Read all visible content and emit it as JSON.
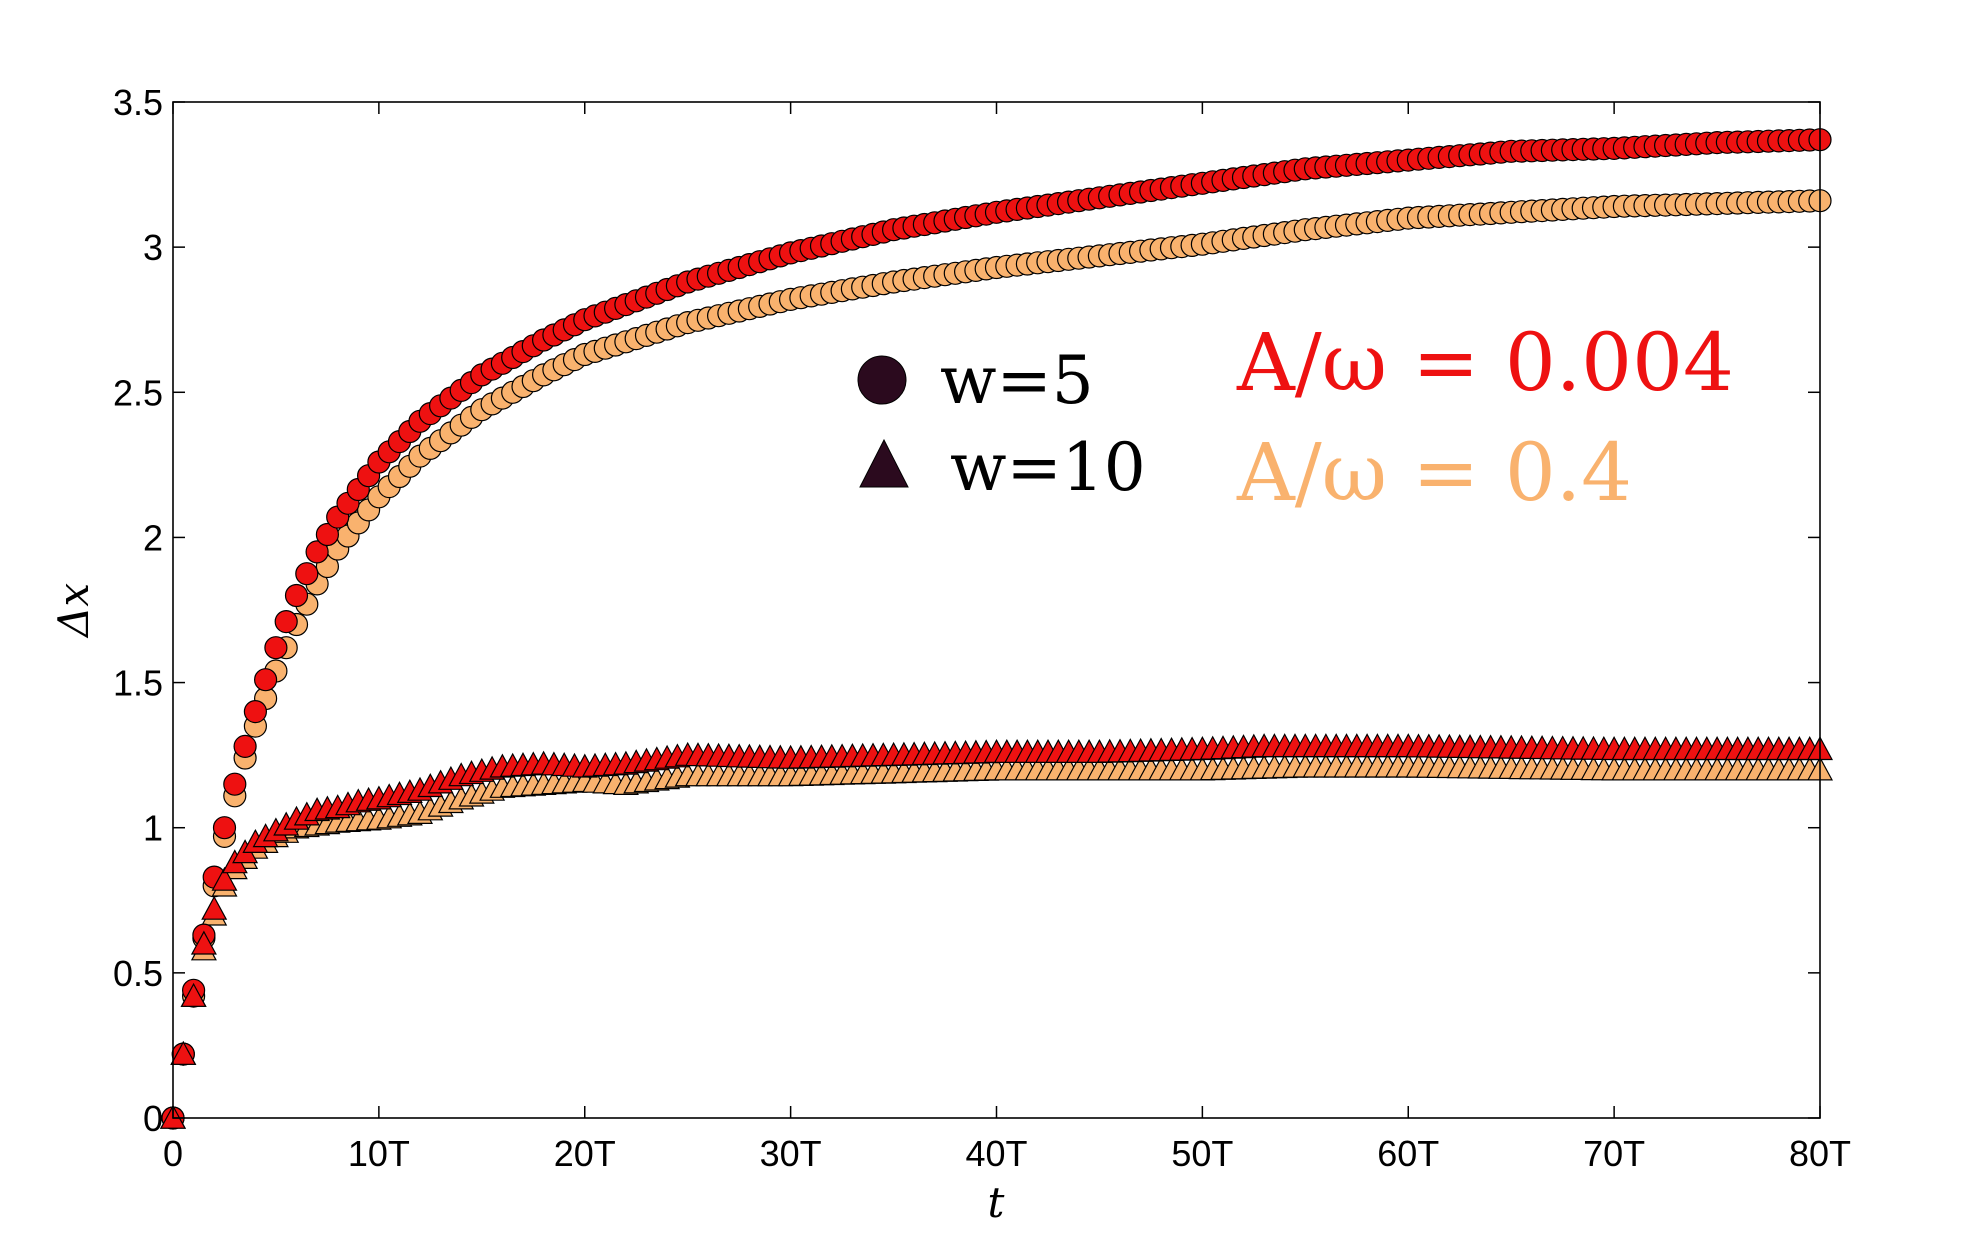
{
  "chart_data": {
    "type": "scatter",
    "title": "",
    "xlabel": "t",
    "ylabel": "Δx",
    "xlim": [
      0,
      80
    ],
    "ylim": [
      0,
      3.5
    ],
    "grid": false,
    "x_ticks": [
      {
        "value": 0,
        "label": "0"
      },
      {
        "value": 10,
        "label": "10T"
      },
      {
        "value": 20,
        "label": "20T"
      },
      {
        "value": 30,
        "label": "30T"
      },
      {
        "value": 40,
        "label": "40T"
      },
      {
        "value": 50,
        "label": "50T"
      },
      {
        "value": 60,
        "label": "60T"
      },
      {
        "value": 70,
        "label": "70T"
      },
      {
        "value": 80,
        "label": "80T"
      }
    ],
    "y_ticks": [
      {
        "value": 0,
        "label": "0"
      },
      {
        "value": 0.5,
        "label": "0.5"
      },
      {
        "value": 1,
        "label": "1"
      },
      {
        "value": 1.5,
        "label": "1.5"
      },
      {
        "value": 2,
        "label": "2"
      },
      {
        "value": 2.5,
        "label": "2.5"
      },
      {
        "value": 3,
        "label": "3"
      },
      {
        "value": 3.5,
        "label": "3.5"
      }
    ],
    "legend": {
      "placement": "upper-center",
      "entries": [
        {
          "marker": "circle",
          "label": "w=5"
        },
        {
          "marker": "triangle",
          "label": "w=10"
        }
      ],
      "color": "#2b0a1e"
    },
    "annotations": [
      {
        "text": "A/ω = 0.004",
        "color": "#ee1111"
      },
      {
        "text": "A/ω = 0.4",
        "color": "#f9b26e"
      }
    ],
    "sampling": {
      "t_start": 0,
      "t_end": 80,
      "step": 0.5
    },
    "series": [
      {
        "name": "w=5, A/ω = 0.004",
        "marker": "circle",
        "color": "#ee1111",
        "anchors": [
          [
            0,
            0
          ],
          [
            0.5,
            0.22
          ],
          [
            1,
            0.44
          ],
          [
            1.5,
            0.63
          ],
          [
            2,
            0.83
          ],
          [
            2.5,
            1.0
          ],
          [
            3,
            1.15
          ],
          [
            3.5,
            1.28
          ],
          [
            4,
            1.4
          ],
          [
            5,
            1.62
          ],
          [
            6,
            1.8
          ],
          [
            7,
            1.95
          ],
          [
            8,
            2.07
          ],
          [
            10,
            2.26
          ],
          [
            12,
            2.4
          ],
          [
            15,
            2.56
          ],
          [
            18,
            2.68
          ],
          [
            20,
            2.75
          ],
          [
            25,
            2.88
          ],
          [
            30,
            2.98
          ],
          [
            35,
            3.06
          ],
          [
            40,
            3.12
          ],
          [
            45,
            3.17
          ],
          [
            50,
            3.22
          ],
          [
            55,
            3.27
          ],
          [
            60,
            3.3
          ],
          [
            65,
            3.33
          ],
          [
            70,
            3.34
          ],
          [
            75,
            3.36
          ],
          [
            80,
            3.37
          ]
        ]
      },
      {
        "name": "w=5, A/ω = 0.4",
        "marker": "circle",
        "color": "#f9b26e",
        "anchors": [
          [
            0,
            0
          ],
          [
            0.5,
            0.22
          ],
          [
            1,
            0.42
          ],
          [
            1.5,
            0.62
          ],
          [
            2,
            0.8
          ],
          [
            2.5,
            0.97
          ],
          [
            3,
            1.11
          ],
          [
            3.5,
            1.24
          ],
          [
            4,
            1.35
          ],
          [
            5,
            1.54
          ],
          [
            6,
            1.7
          ],
          [
            7,
            1.84
          ],
          [
            8,
            1.96
          ],
          [
            10,
            2.14
          ],
          [
            12,
            2.28
          ],
          [
            15,
            2.44
          ],
          [
            18,
            2.56
          ],
          [
            20,
            2.63
          ],
          [
            25,
            2.74
          ],
          [
            30,
            2.82
          ],
          [
            35,
            2.88
          ],
          [
            40,
            2.93
          ],
          [
            45,
            2.97
          ],
          [
            50,
            3.01
          ],
          [
            55,
            3.06
          ],
          [
            60,
            3.1
          ],
          [
            65,
            3.12
          ],
          [
            70,
            3.14
          ],
          [
            75,
            3.15
          ],
          [
            80,
            3.16
          ]
        ]
      },
      {
        "name": "w=10, A/ω = 0.004",
        "marker": "triangle",
        "color": "#ee1111",
        "anchors": [
          [
            0,
            0
          ],
          [
            0.5,
            0.22
          ],
          [
            1,
            0.42
          ],
          [
            1.5,
            0.6
          ],
          [
            2,
            0.72
          ],
          [
            2.5,
            0.82
          ],
          [
            3,
            0.88
          ],
          [
            4,
            0.95
          ],
          [
            5,
            0.99
          ],
          [
            6,
            1.03
          ],
          [
            7,
            1.06
          ],
          [
            8,
            1.07
          ],
          [
            9,
            1.09
          ],
          [
            10,
            1.1
          ],
          [
            12,
            1.13
          ],
          [
            14,
            1.18
          ],
          [
            16,
            1.21
          ],
          [
            18,
            1.22
          ],
          [
            20,
            1.21
          ],
          [
            22,
            1.22
          ],
          [
            25,
            1.25
          ],
          [
            30,
            1.24
          ],
          [
            35,
            1.25
          ],
          [
            40,
            1.26
          ],
          [
            45,
            1.26
          ],
          [
            50,
            1.27
          ],
          [
            53,
            1.28
          ],
          [
            55,
            1.28
          ],
          [
            60,
            1.28
          ],
          [
            70,
            1.27
          ],
          [
            80,
            1.27
          ]
        ]
      },
      {
        "name": "w=10, A/ω = 0.4",
        "marker": "triangle",
        "color": "#f9b26e",
        "anchors": [
          [
            0,
            0
          ],
          [
            0.5,
            0.22
          ],
          [
            1,
            0.42
          ],
          [
            1.5,
            0.58
          ],
          [
            2,
            0.7
          ],
          [
            2.5,
            0.8
          ],
          [
            3,
            0.86
          ],
          [
            4,
            0.93
          ],
          [
            5,
            0.97
          ],
          [
            6,
            1.0
          ],
          [
            7,
            1.01
          ],
          [
            8,
            1.02
          ],
          [
            10,
            1.03
          ],
          [
            12,
            1.05
          ],
          [
            14,
            1.1
          ],
          [
            16,
            1.14
          ],
          [
            18,
            1.15
          ],
          [
            20,
            1.16
          ],
          [
            22,
            1.15
          ],
          [
            25,
            1.18
          ],
          [
            30,
            1.18
          ],
          [
            35,
            1.19
          ],
          [
            40,
            1.2
          ],
          [
            45,
            1.2
          ],
          [
            50,
            1.2
          ],
          [
            55,
            1.21
          ],
          [
            60,
            1.21
          ],
          [
            70,
            1.2
          ],
          [
            80,
            1.2
          ]
        ]
      }
    ]
  }
}
